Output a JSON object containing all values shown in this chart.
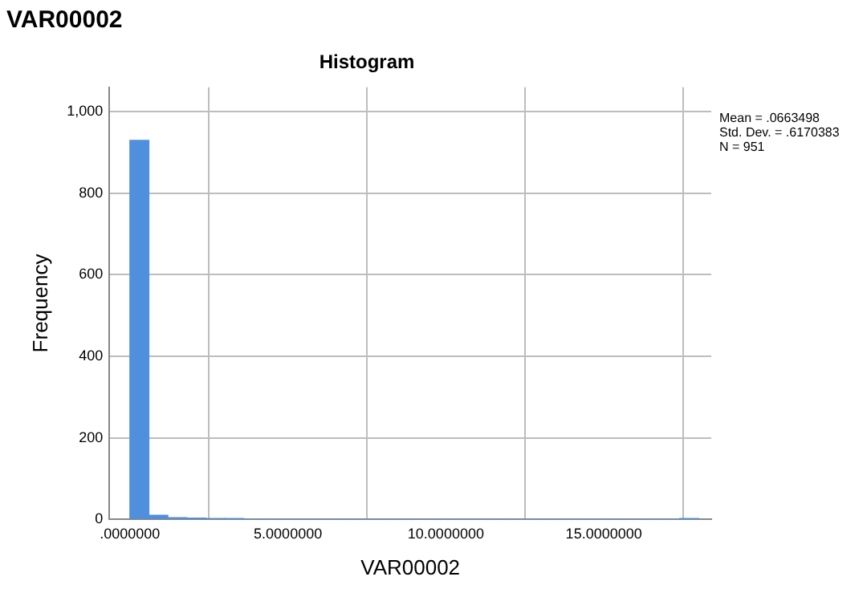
{
  "chart_data": {
    "type": "histogram",
    "title": "VAR00002",
    "subtitle": "Histogram",
    "xlabel": "VAR00002",
    "ylabel": "Frequency",
    "bins": [
      0,
      0.6,
      1.2,
      1.8,
      2.4,
      3,
      3.6,
      4.2,
      4.8,
      5.4,
      6,
      6.6,
      7.2,
      7.8,
      8.4,
      9,
      9.6,
      10.2,
      10.8,
      11.4,
      12,
      12.6,
      13.2,
      13.8,
      14.4,
      15,
      15.6,
      16.2,
      16.8,
      17.4,
      18
    ],
    "values": [
      930,
      10,
      4,
      3,
      2,
      1,
      0,
      0,
      0,
      0,
      0,
      0,
      0,
      0,
      0,
      0,
      0,
      0,
      0,
      0,
      0,
      0,
      0,
      0,
      0,
      0,
      0,
      0,
      0,
      1
    ],
    "color": "#4f8fdd",
    "xlim": [
      -0.65,
      18.4
    ],
    "xticks": [
      {
        "value": 0,
        "label": ".0000000"
      },
      {
        "value": 5,
        "label": "5.0000000"
      },
      {
        "value": 10,
        "label": "10.0000000"
      },
      {
        "value": 15,
        "label": "15.0000000"
      }
    ],
    "ylim": [
      0,
      1060
    ],
    "yticks": [
      0,
      200,
      400,
      600,
      800,
      {
        "value": 1000,
        "label": "1,000"
      }
    ],
    "grid": true,
    "annotations": [
      "Mean = .0663498",
      "Std. Dev. = .6170383",
      "N = 951"
    ]
  }
}
